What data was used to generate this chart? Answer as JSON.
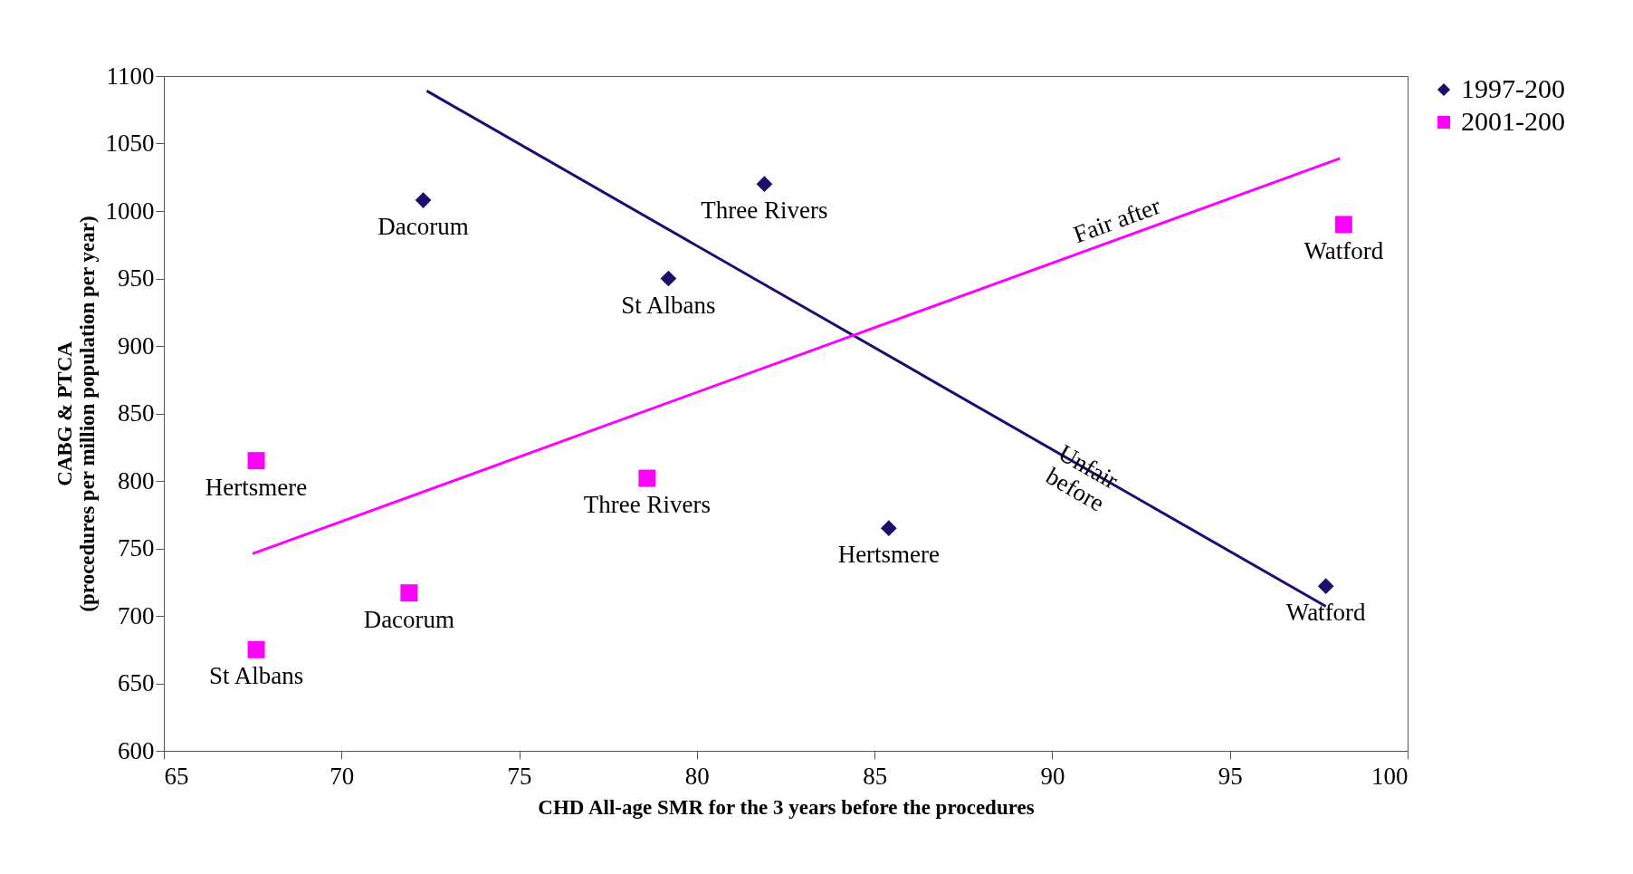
{
  "chart_data": {
    "type": "scatter",
    "xlabel": "CHD All-age SMR for the 3 years before the procedures",
    "ylabel": "CABG & PTCA\n(procedures per million population per year)",
    "legend": "right",
    "grid": false,
    "xlim": [
      65,
      100
    ],
    "xticks": [
      65,
      70,
      75,
      80,
      85,
      90,
      95,
      100
    ],
    "ylim": [
      600,
      1100
    ],
    "yticks": [
      600,
      650,
      700,
      750,
      800,
      850,
      900,
      950,
      1000,
      1050,
      1100
    ],
    "series": [
      {
        "name": "1997-200",
        "color": "#1a0f6e",
        "marker": "diamond",
        "x": [
          72.3,
          81.9,
          79.2,
          85.4,
          97.7
        ],
        "values": [
          1008,
          1020,
          950,
          765,
          722
        ]
      },
      {
        "name": "2001-200",
        "color": "#ff00ff",
        "marker": "square",
        "x": [
          67.6,
          78.6,
          71.9,
          67.6,
          98.2
        ],
        "values": [
          815,
          802,
          717,
          675,
          990
        ]
      },
      {
        "type": "line",
        "color": "#1a0f6e",
        "x": [
          72.4,
          97.7
        ],
        "values": [
          1089,
          707
        ]
      },
      {
        "type": "line",
        "color": "#ff00ff",
        "x": [
          67.5,
          98.1
        ],
        "values": [
          746,
          1039
        ]
      }
    ],
    "annotations": [
      {
        "text": "Dacorum",
        "x": 72.3,
        "y": 1008
      },
      {
        "text": "Three Rivers",
        "x": 81.9,
        "y": 1020
      },
      {
        "text": "St Albans",
        "x": 79.2,
        "y": 950
      },
      {
        "text": "Hertsmere",
        "x": 85.4,
        "y": 765
      },
      {
        "text": "Watford",
        "x": 97.7,
        "y": 722
      },
      {
        "text": "Hertsmere",
        "x": 67.6,
        "y": 815
      },
      {
        "text": "Three Rivers",
        "x": 78.6,
        "y": 802
      },
      {
        "text": "Dacorum",
        "x": 71.9,
        "y": 717
      },
      {
        "text": "St Albans",
        "x": 67.6,
        "y": 675
      },
      {
        "text": "Watford",
        "x": 98.2,
        "y": 990
      },
      {
        "text": "Fair after",
        "x": 92,
        "y": 980
      },
      {
        "text": "Unfair\nbefore",
        "x": 91,
        "y": 810
      }
    ]
  }
}
